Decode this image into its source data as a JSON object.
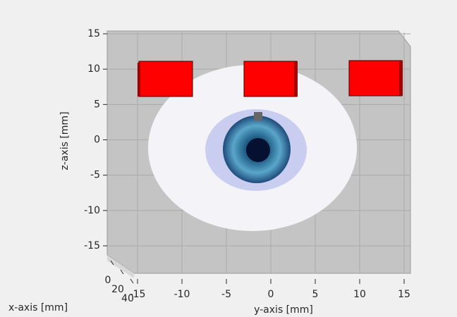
{
  "chart_data": {
    "type": "scene3d",
    "xlabel": "x-axis [mm]",
    "ylabel": "y-axis [mm]",
    "zlabel": "z-axis [mm]",
    "xlim": [
      0,
      40
    ],
    "xticks": [
      0,
      20,
      40
    ],
    "ylim": [
      -15,
      15
    ],
    "yticks": [
      -15,
      -10,
      -5,
      0,
      5,
      10,
      15
    ],
    "zlim": [
      -15,
      15
    ],
    "zticks": [
      -15,
      -10,
      -5,
      0,
      5,
      10,
      15
    ],
    "grid": true
  }
}
